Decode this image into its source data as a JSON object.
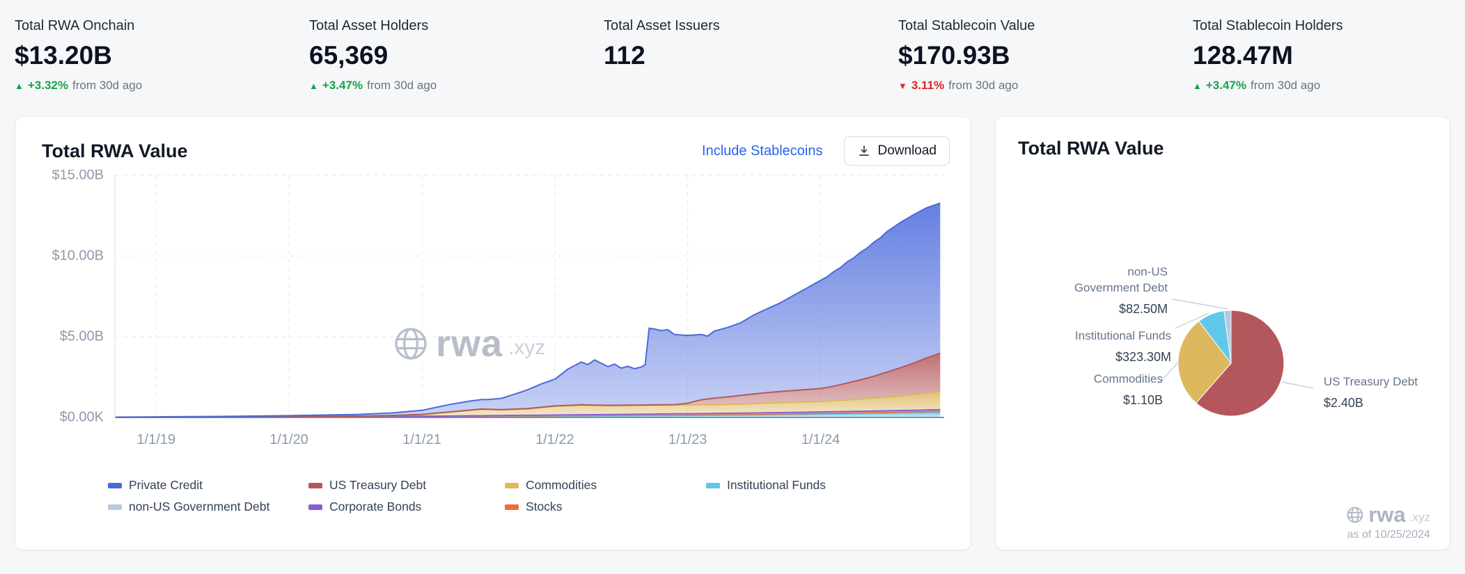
{
  "stats": [
    {
      "label": "Total RWA Onchain",
      "value": "$13.20B",
      "change_pct": "+3.32%",
      "change_suffix": "from 30d ago",
      "direction": "up"
    },
    {
      "label": "Total Asset Holders",
      "value": "65,369",
      "change_pct": "+3.47%",
      "change_suffix": "from 30d ago",
      "direction": "up"
    },
    {
      "label": "Total Asset Issuers",
      "value": "112"
    },
    {
      "label": "Total Stablecoin Value",
      "value": "$170.93B",
      "change_pct": "3.11%",
      "change_suffix": "from 30d ago",
      "direction": "down"
    },
    {
      "label": "Total Stablecoin Holders",
      "value": "128.47M",
      "change_pct": "+3.47%",
      "change_suffix": "from 30d ago",
      "direction": "up"
    }
  ],
  "left_card": {
    "title": "Total RWA Value",
    "stablecoins_link": "Include Stablecoins",
    "download_label": "Download"
  },
  "right_card": {
    "title": "Total RWA Value",
    "as_of": "as of 10/25/2024"
  },
  "watermark": {
    "brand": "rwa",
    "tld": ".xyz"
  },
  "chart_data": [
    {
      "type": "area",
      "stacked": true,
      "title": "Total RWA Value",
      "unit": "USD billions",
      "x_domain": [
        2018.69,
        2024.93
      ],
      "ylim": [
        0,
        15
      ],
      "grid": true,
      "legend_position": "bottom",
      "y_ticks": [
        {
          "v": 0,
          "label": "$0.00K"
        },
        {
          "v": 5,
          "label": "$5.00B"
        },
        {
          "v": 10,
          "label": "$10.00B"
        },
        {
          "v": 15,
          "label": "$15.00B"
        }
      ],
      "x_ticks": [
        {
          "v": 2019,
          "label": "1/1/19"
        },
        {
          "v": 2020,
          "label": "1/1/20"
        },
        {
          "v": 2021,
          "label": "1/1/21"
        },
        {
          "v": 2022,
          "label": "1/1/22"
        },
        {
          "v": 2023,
          "label": "1/1/23"
        },
        {
          "v": 2024,
          "label": "1/1/24"
        }
      ],
      "series": [
        {
          "name": "Institutional Funds",
          "color": "#5fc8e8",
          "points": [
            [
              2018.7,
              0.01
            ],
            [
              2019.5,
              0.01
            ],
            [
              2020,
              0.02
            ],
            [
              2021,
              0.04
            ],
            [
              2021.5,
              0.06
            ],
            [
              2022,
              0.08
            ],
            [
              2022.5,
              0.1
            ],
            [
              2023,
              0.12
            ],
            [
              2023.5,
              0.15
            ],
            [
              2024,
              0.2
            ],
            [
              2024.5,
              0.26
            ],
            [
              2024.9,
              0.32
            ]
          ]
        },
        {
          "name": "Stocks",
          "color": "#e8703d",
          "points": [
            [
              2018.7,
              0
            ],
            [
              2020,
              0.01
            ],
            [
              2021,
              0.02
            ],
            [
              2022,
              0.03
            ],
            [
              2023,
              0.04
            ],
            [
              2024,
              0.05
            ],
            [
              2024.9,
              0.06
            ]
          ]
        },
        {
          "name": "non-US Government Debt",
          "color": "#b9c7e0",
          "points": [
            [
              2018.7,
              0
            ],
            [
              2021,
              0.01
            ],
            [
              2022,
              0.03
            ],
            [
              2023,
              0.05
            ],
            [
              2024,
              0.07
            ],
            [
              2024.9,
              0.08
            ]
          ]
        },
        {
          "name": "Corporate Bonds",
          "color": "#8b5cd6",
          "points": [
            [
              2018.7,
              0
            ],
            [
              2022,
              0.01
            ],
            [
              2023,
              0.02
            ],
            [
              2024,
              0.02
            ],
            [
              2024.9,
              0.02
            ]
          ]
        },
        {
          "name": "Commodities",
          "color": "#ddb85f",
          "points": [
            [
              2018.7,
              0
            ],
            [
              2020.5,
              0.02
            ],
            [
              2020.8,
              0.05
            ],
            [
              2021,
              0.1
            ],
            [
              2021.3,
              0.3
            ],
            [
              2021.45,
              0.4
            ],
            [
              2021.6,
              0.35
            ],
            [
              2021.8,
              0.4
            ],
            [
              2022,
              0.55
            ],
            [
              2022.2,
              0.6
            ],
            [
              2022.4,
              0.55
            ],
            [
              2022.7,
              0.55
            ],
            [
              2023,
              0.55
            ],
            [
              2023.3,
              0.55
            ],
            [
              2023.6,
              0.6
            ],
            [
              2024,
              0.65
            ],
            [
              2024.3,
              0.75
            ],
            [
              2024.6,
              0.9
            ],
            [
              2024.9,
              1.1
            ]
          ]
        },
        {
          "name": "US Treasury Debt",
          "color": "#b4575c",
          "points": [
            [
              2018.7,
              0
            ],
            [
              2022.9,
              0.02
            ],
            [
              2023,
              0.1
            ],
            [
              2023.1,
              0.3
            ],
            [
              2023.2,
              0.4
            ],
            [
              2023.35,
              0.5
            ],
            [
              2023.5,
              0.6
            ],
            [
              2023.7,
              0.7
            ],
            [
              2023.85,
              0.75
            ],
            [
              2024,
              0.8
            ],
            [
              2024.1,
              0.9
            ],
            [
              2024.2,
              1.05
            ],
            [
              2024.3,
              1.2
            ],
            [
              2024.4,
              1.35
            ],
            [
              2024.5,
              1.55
            ],
            [
              2024.6,
              1.75
            ],
            [
              2024.7,
              1.95
            ],
            [
              2024.8,
              2.2
            ],
            [
              2024.9,
              2.4
            ]
          ]
        },
        {
          "name": "Private Credit",
          "color": "#4a69dc",
          "points": [
            [
              2018.7,
              0.01
            ],
            [
              2019,
              0.02
            ],
            [
              2019.5,
              0.03
            ],
            [
              2020,
              0.05
            ],
            [
              2020.5,
              0.1
            ],
            [
              2020.75,
              0.15
            ],
            [
              2021,
              0.25
            ],
            [
              2021.2,
              0.45
            ],
            [
              2021.35,
              0.55
            ],
            [
              2021.5,
              0.6
            ],
            [
              2021.6,
              0.7
            ],
            [
              2021.75,
              1.05
            ],
            [
              2021.9,
              1.45
            ],
            [
              2022,
              1.65
            ],
            [
              2022.05,
              1.95
            ],
            [
              2022.1,
              2.25
            ],
            [
              2022.15,
              2.45
            ],
            [
              2022.2,
              2.65
            ],
            [
              2022.25,
              2.5
            ],
            [
              2022.3,
              2.8
            ],
            [
              2022.35,
              2.6
            ],
            [
              2022.4,
              2.4
            ],
            [
              2022.45,
              2.55
            ],
            [
              2022.5,
              2.3
            ],
            [
              2022.55,
              2.4
            ],
            [
              2022.6,
              2.25
            ],
            [
              2022.65,
              2.35
            ],
            [
              2022.68,
              2.5
            ],
            [
              2022.71,
              4.75
            ],
            [
              2022.75,
              4.7
            ],
            [
              2022.8,
              4.6
            ],
            [
              2022.85,
              4.65
            ],
            [
              2022.9,
              4.35
            ],
            [
              2023,
              4.2
            ],
            [
              2023.1,
              4.05
            ],
            [
              2023.15,
              3.9
            ],
            [
              2023.2,
              4.15
            ],
            [
              2023.3,
              4.3
            ],
            [
              2023.4,
              4.5
            ],
            [
              2023.5,
              4.9
            ],
            [
              2023.6,
              5.2
            ],
            [
              2023.7,
              5.5
            ],
            [
              2023.8,
              5.9
            ],
            [
              2023.9,
              6.3
            ],
            [
              2024,
              6.7
            ],
            [
              2024.05,
              6.85
            ],
            [
              2024.1,
              7.1
            ],
            [
              2024.15,
              7.25
            ],
            [
              2024.2,
              7.5
            ],
            [
              2024.25,
              7.65
            ],
            [
              2024.3,
              7.9
            ],
            [
              2024.35,
              8.05
            ],
            [
              2024.4,
              8.3
            ],
            [
              2024.45,
              8.45
            ],
            [
              2024.5,
              8.7
            ],
            [
              2024.55,
              8.85
            ],
            [
              2024.6,
              9.0
            ],
            [
              2024.65,
              9.1
            ],
            [
              2024.7,
              9.2
            ],
            [
              2024.75,
              9.25
            ],
            [
              2024.8,
              9.3
            ],
            [
              2024.9,
              9.3
            ]
          ]
        }
      ],
      "legend": [
        {
          "name": "Private Credit",
          "color": "#4a69dc"
        },
        {
          "name": "US Treasury Debt",
          "color": "#b4575c"
        },
        {
          "name": "Commodities",
          "color": "#ddb85f"
        },
        {
          "name": "Institutional Funds",
          "color": "#5fc8e8"
        },
        {
          "name": "non-US Government Debt",
          "color": "#b9c7e0"
        },
        {
          "name": "Corporate Bonds",
          "color": "#8b5cd6"
        },
        {
          "name": "Stocks",
          "color": "#e8703d"
        }
      ]
    },
    {
      "type": "pie",
      "title": "Total RWA Value",
      "slices": [
        {
          "name": "US Treasury Debt",
          "value": 2.4,
          "value_label": "$2.40B",
          "color": "#b4575c"
        },
        {
          "name": "Commodities",
          "value": 1.1,
          "value_label": "$1.10B",
          "color": "#ddb85f"
        },
        {
          "name": "Institutional Funds",
          "value": 0.3233,
          "value_label": "$323.30M",
          "color": "#5fc8e8"
        },
        {
          "name": "non-US Government Debt",
          "name_lines": [
            "non-US",
            "Government Debt"
          ],
          "value": 0.0825,
          "value_label": "$82.50M",
          "color": "#b9c7e0"
        }
      ]
    }
  ]
}
